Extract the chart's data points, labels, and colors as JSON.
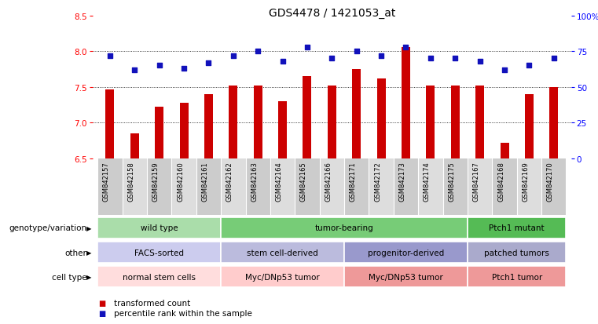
{
  "title": "GDS4478 / 1421053_at",
  "samples": [
    "GSM842157",
    "GSM842158",
    "GSM842159",
    "GSM842160",
    "GSM842161",
    "GSM842162",
    "GSM842163",
    "GSM842164",
    "GSM842165",
    "GSM842166",
    "GSM842171",
    "GSM842172",
    "GSM842173",
    "GSM842174",
    "GSM842175",
    "GSM842167",
    "GSM842168",
    "GSM842169",
    "GSM842170"
  ],
  "bar_values": [
    7.47,
    6.85,
    7.22,
    7.28,
    7.4,
    7.52,
    7.52,
    7.3,
    7.65,
    7.52,
    7.75,
    7.62,
    8.06,
    7.52,
    7.52,
    7.52,
    6.72,
    7.4,
    7.5
  ],
  "dot_values": [
    72,
    62,
    65,
    63,
    67,
    72,
    75,
    68,
    78,
    70,
    75,
    72,
    78,
    70,
    70,
    68,
    62,
    65,
    70
  ],
  "ylim_left": [
    6.5,
    8.5
  ],
  "ylim_right": [
    0,
    100
  ],
  "yticks_left": [
    6.5,
    7.0,
    7.5,
    8.0,
    8.5
  ],
  "yticks_right": [
    0,
    25,
    50,
    75,
    100
  ],
  "ytick_labels_right": [
    "0",
    "25",
    "50",
    "75",
    "100%"
  ],
  "grid_lines": [
    7.0,
    7.5,
    8.0
  ],
  "bar_color": "#CC0000",
  "dot_color": "#1111BB",
  "bg_color": "#FFFFFF",
  "plot_bg_color": "#FFFFFF",
  "xtick_bg": "#DDDDDD",
  "genotype_groups": [
    {
      "label": "wild type",
      "start": 0,
      "end": 5,
      "color": "#AADDAA"
    },
    {
      "label": "tumor-bearing",
      "start": 5,
      "end": 15,
      "color": "#77CC77"
    },
    {
      "label": "Ptch1 mutant",
      "start": 15,
      "end": 19,
      "color": "#55BB55"
    }
  ],
  "other_groups": [
    {
      "label": "FACS-sorted",
      "start": 0,
      "end": 5,
      "color": "#CCCCEE"
    },
    {
      "label": "stem cell-derived",
      "start": 5,
      "end": 10,
      "color": "#BBBBDD"
    },
    {
      "label": "progenitor-derived",
      "start": 10,
      "end": 15,
      "color": "#9999CC"
    },
    {
      "label": "patched tumors",
      "start": 15,
      "end": 19,
      "color": "#AAAACC"
    }
  ],
  "celltype_groups": [
    {
      "label": "normal stem cells",
      "start": 0,
      "end": 5,
      "color": "#FFDDDD"
    },
    {
      "label": "Myc/DNp53 tumor",
      "start": 5,
      "end": 10,
      "color": "#FFCCCC"
    },
    {
      "label": "Myc/DNp53 tumor",
      "start": 10,
      "end": 15,
      "color": "#EE9999"
    },
    {
      "label": "Ptch1 tumor",
      "start": 15,
      "end": 19,
      "color": "#EE9999"
    }
  ],
  "row_labels": [
    "genotype/variation",
    "other",
    "cell type"
  ],
  "legend_items": [
    {
      "color": "#CC0000",
      "label": "transformed count"
    },
    {
      "color": "#1111BB",
      "label": "percentile rank within the sample"
    }
  ]
}
